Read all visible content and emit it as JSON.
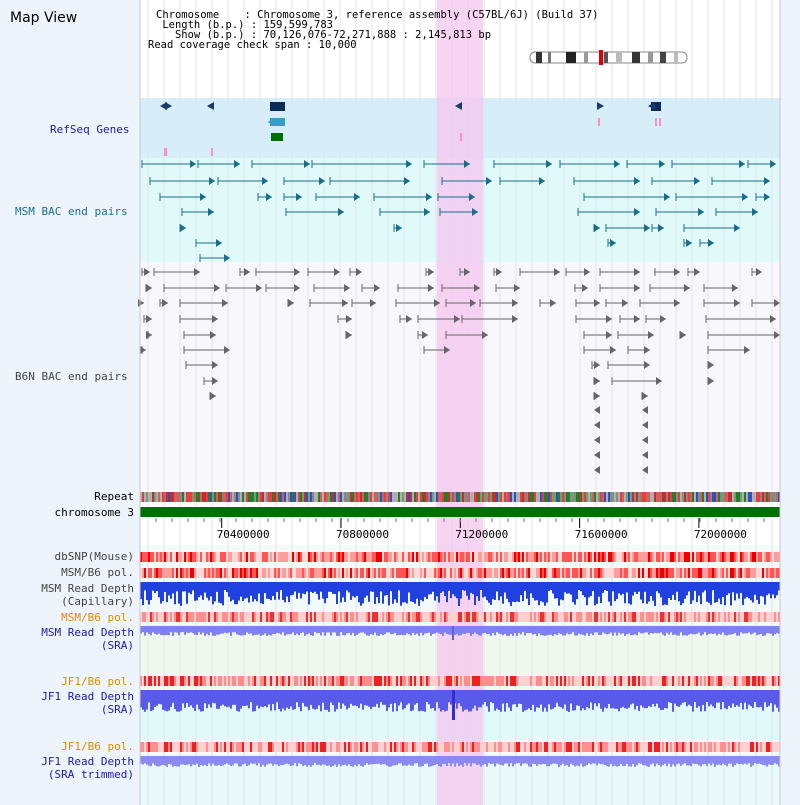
{
  "title": "Map View",
  "info": {
    "chromosome": "Chromosome    : Chromosome 3, reference assembly (C57BL/6J) (Build 37)",
    "length": " Length (b.p.) : 159,599,783",
    "show": "   Show (b.p.) : 70,126,076-72,271,888 : 2,145,813 bp",
    "coverage": "Read coverage check span : 10,000"
  },
  "tracks": {
    "refseq": "RefSeq Genes",
    "msm_bac": "MSM BAC end pairs",
    "b6n_bac": "B6N BAC end pairs",
    "repeat": "Repeat",
    "chromosome": "chromosome 3",
    "dbsnp": "dbSNP(Mouse)",
    "msm_b6_pol_1": "MSM/B6 pol.",
    "msm_read_depth_cap_1": "MSM Read Depth",
    "msm_read_depth_cap_2": "(Capillary)",
    "msm_b6_pol_2": "MSM/B6 pol.",
    "msm_read_depth_sra_1": "MSM Read Depth",
    "msm_read_depth_sra_2": "(SRA)",
    "jf1_b6_pol_1": "JF1/B6 pol.",
    "jf1_read_depth_sra_1": "JF1 Read Depth",
    "jf1_read_depth_sra_2": "(SRA)",
    "jf1_b6_pol_2": "JF1/B6 pol.",
    "jf1_read_depth_trim_1": "JF1 Read Depth",
    "jf1_read_depth_trim_2": "(SRA trimmed)"
  },
  "axis": {
    "range": [
      70126076,
      72271888
    ],
    "ticks": [
      "70400000",
      "70800000",
      "71200000",
      "71600000",
      "72000000"
    ]
  },
  "highlight_range": [
    71100000,
    71250000
  ],
  "colors": {
    "navy_label": "#1a1aa8",
    "teal_label": "#1a6e8a",
    "gray_label": "#444444",
    "orange_label": "#e08a00",
    "chrom_green": "#007000",
    "highlight": "#f5c6ef"
  }
}
